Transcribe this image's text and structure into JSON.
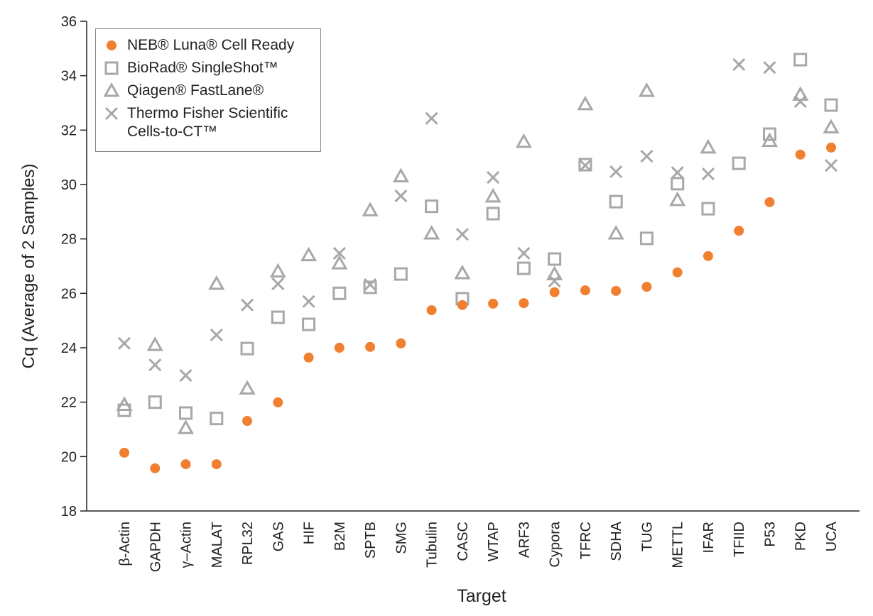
{
  "chart_data": {
    "type": "scatter",
    "xlabel": "Target",
    "ylabel": "Cq (Average of 2 Samples)",
    "categories": [
      "β-Actin",
      "GAPDH",
      "γ–Actin",
      "MALAT",
      "RPL32",
      "GAS",
      "HIF",
      "B2M",
      "SPTB",
      "SMG",
      "Tubulin",
      "CASC",
      "WTAP",
      "ARF3",
      "Cypora",
      "TFRC",
      "SDHA",
      "TUG",
      "METTL",
      "IFAR",
      "TFIID",
      "P53",
      "PKD",
      "UCA"
    ],
    "series": [
      {
        "name": "NEB® Luna® Cell Ready",
        "color": "#f07f2f",
        "marker": "circle",
        "values": [
          20.14,
          19.57,
          19.72,
          19.72,
          21.31,
          21.99,
          23.64,
          24.0,
          24.03,
          24.16,
          25.38,
          25.57,
          25.62,
          25.64,
          26.04,
          26.11,
          26.09,
          26.24,
          26.77,
          27.37,
          28.3,
          29.35,
          31.1,
          31.36
        ]
      },
      {
        "name": "BioRad® SingleShot™",
        "color": "#a8a8a8",
        "marker": "square",
        "values": [
          21.7,
          22.0,
          21.6,
          21.4,
          23.97,
          25.12,
          24.86,
          26.0,
          26.22,
          26.71,
          29.2,
          25.8,
          28.93,
          26.92,
          27.26,
          30.73,
          29.37,
          28.02,
          30.03,
          29.11,
          30.78,
          31.85,
          34.59,
          32.92
        ]
      },
      {
        "name": "Qiagen® FastLane®",
        "color": "#a8a8a8",
        "marker": "triangle",
        "values": [
          21.9,
          24.1,
          21.05,
          26.35,
          22.5,
          26.8,
          27.4,
          27.1,
          29.05,
          30.3,
          28.2,
          26.74,
          29.56,
          31.57,
          26.7,
          32.95,
          28.2,
          33.44,
          29.43,
          31.36,
          null,
          31.6,
          33.3,
          32.1
        ]
      },
      {
        "name": "Thermo Fisher Scientific Cells-to-CT™",
        "color": "#a8a8a8",
        "marker": "x",
        "values": [
          24.16,
          23.37,
          22.98,
          24.47,
          25.57,
          26.35,
          25.7,
          27.47,
          26.32,
          29.58,
          32.43,
          28.17,
          30.26,
          27.47,
          26.45,
          30.7,
          30.47,
          31.04,
          30.44,
          30.39,
          34.41,
          34.3,
          33.05,
          30.7
        ]
      }
    ],
    "ylim": [
      18,
      36
    ],
    "yticks": [
      18,
      20,
      22,
      24,
      26,
      28,
      30,
      32,
      34,
      36
    ],
    "legend": "upper left"
  }
}
